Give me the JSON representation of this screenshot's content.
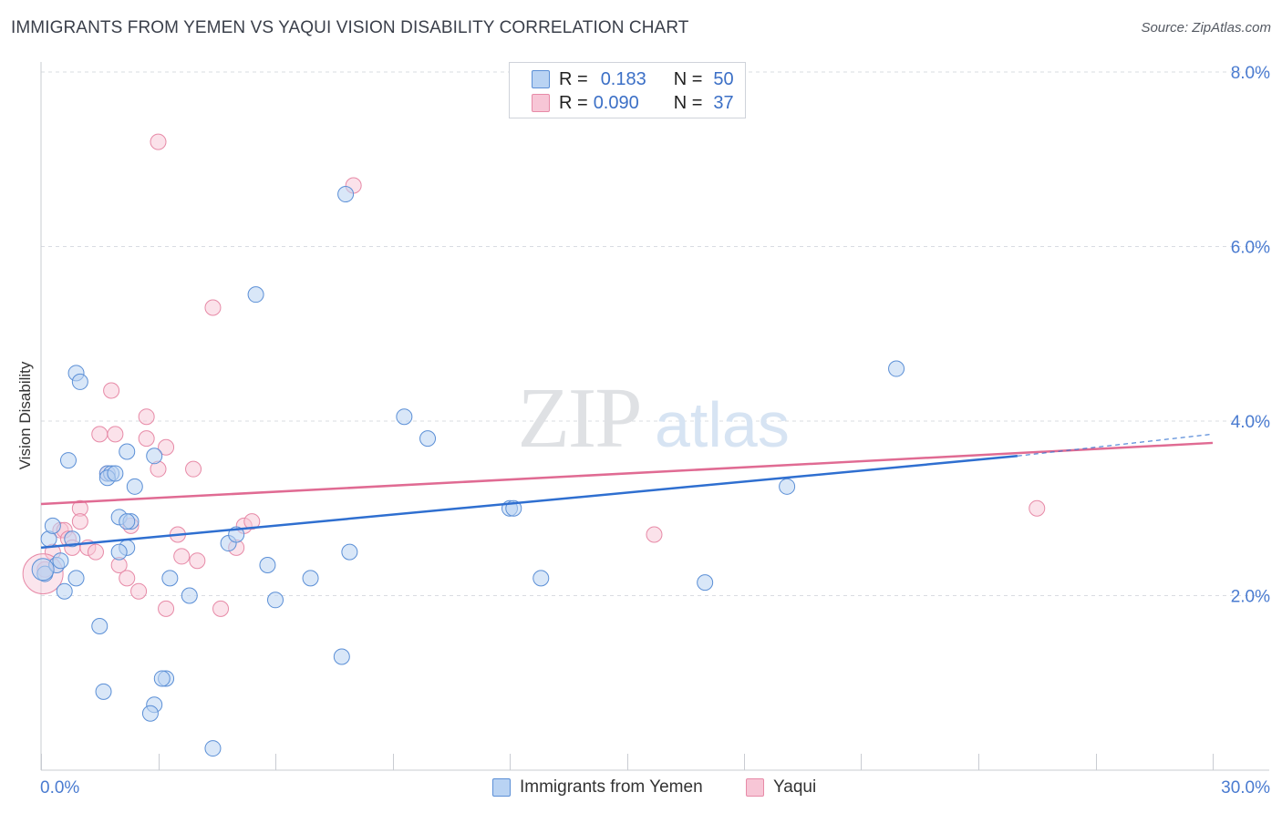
{
  "title": "IMMIGRANTS FROM YEMEN VS YAQUI VISION DISABILITY CORRELATION CHART",
  "source": "Source: ZipAtlas.com",
  "watermark": {
    "zip": "ZIP",
    "atlas": "atlas"
  },
  "legend_top": [
    {
      "r_label": "R =",
      "r_value": "0.183",
      "n_label": "N =",
      "n_value": "50"
    },
    {
      "r_label": "R =",
      "r_value": "0.090",
      "n_label": "N =",
      "n_value": "37"
    }
  ],
  "legend_bottom": [
    {
      "label": "Immigrants from Yemen"
    },
    {
      "label": "Yaqui"
    }
  ],
  "colors": {
    "blue_fill": "#b9d3f3",
    "blue_stroke": "#5b8fd6",
    "blue_line": "#2f6fd0",
    "pink_fill": "#f7c6d6",
    "pink_stroke": "#e78aa7",
    "pink_line": "#e06b93",
    "tick_label": "#4a7bd0",
    "grid": "#d9dce2"
  },
  "chart_data": {
    "type": "scatter",
    "title": "IMMIGRANTS FROM YEMEN VS YAQUI VISION DISABILITY CORRELATION CHART",
    "xlabel": "",
    "ylabel": "Vision Disability",
    "xlim": [
      0,
      30
    ],
    "ylim": [
      0,
      8
    ],
    "x_tick_labels": [
      {
        "value": 0,
        "label": "0.0%"
      },
      {
        "value": 30,
        "label": "30.0%"
      }
    ],
    "y_tick_labels": [
      {
        "value": 2,
        "label": "2.0%"
      },
      {
        "value": 4,
        "label": "4.0%"
      },
      {
        "value": 6,
        "label": "6.0%"
      },
      {
        "value": 8,
        "label": "8.0%"
      }
    ],
    "series": [
      {
        "name": "Immigrants from Yemen",
        "trend": {
          "x": [
            0,
            25
          ],
          "y": [
            2.55,
            3.6
          ],
          "dashed_to": [
            30,
            3.85
          ]
        },
        "points": [
          [
            0.1,
            2.25
          ],
          [
            0.2,
            2.65
          ],
          [
            0.3,
            2.8
          ],
          [
            0.4,
            2.35
          ],
          [
            0.5,
            2.4
          ],
          [
            0.6,
            2.05
          ],
          [
            0.8,
            2.65
          ],
          [
            0.7,
            3.55
          ],
          [
            0.9,
            2.2
          ],
          [
            0.9,
            4.55
          ],
          [
            1.0,
            4.45
          ],
          [
            1.7,
            3.4
          ],
          [
            1.8,
            3.4
          ],
          [
            1.6,
            0.9
          ],
          [
            1.7,
            3.35
          ],
          [
            1.9,
            3.4
          ],
          [
            1.5,
            1.65
          ],
          [
            2.0,
            2.9
          ],
          [
            2.2,
            2.55
          ],
          [
            2.2,
            3.65
          ],
          [
            2.3,
            2.85
          ],
          [
            2.0,
            2.5
          ],
          [
            2.4,
            3.25
          ],
          [
            2.2,
            2.85
          ],
          [
            2.9,
            3.6
          ],
          [
            2.9,
            0.75
          ],
          [
            2.8,
            0.65
          ],
          [
            3.2,
            1.05
          ],
          [
            3.1,
            1.05
          ],
          [
            3.3,
            2.2
          ],
          [
            3.8,
            2.0
          ],
          [
            4.4,
            0.25
          ],
          [
            4.8,
            2.6
          ],
          [
            5.0,
            2.7
          ],
          [
            5.5,
            5.45
          ],
          [
            5.8,
            2.35
          ],
          [
            6.0,
            1.95
          ],
          [
            6.9,
            2.2
          ],
          [
            7.7,
            1.3
          ],
          [
            7.8,
            6.6
          ],
          [
            7.9,
            2.5
          ],
          [
            9.3,
            4.05
          ],
          [
            9.9,
            3.8
          ],
          [
            12.0,
            3.0
          ],
          [
            12.1,
            3.0
          ],
          [
            12.8,
            2.2
          ],
          [
            17.0,
            2.15
          ],
          [
            19.1,
            3.25
          ],
          [
            21.9,
            4.6
          ],
          [
            0.05,
            2.3
          ]
        ]
      },
      {
        "name": "Yaqui",
        "trend": {
          "x": [
            0,
            30
          ],
          "y": [
            3.05,
            3.75
          ]
        },
        "points": [
          [
            0.1,
            2.3
          ],
          [
            0.3,
            2.5
          ],
          [
            0.5,
            2.75
          ],
          [
            0.6,
            2.75
          ],
          [
            0.7,
            2.65
          ],
          [
            0.8,
            2.55
          ],
          [
            1.0,
            3.0
          ],
          [
            1.0,
            2.85
          ],
          [
            1.2,
            2.55
          ],
          [
            1.4,
            2.5
          ],
          [
            1.5,
            3.85
          ],
          [
            1.7,
            3.4
          ],
          [
            1.8,
            4.35
          ],
          [
            1.9,
            3.85
          ],
          [
            2.0,
            2.35
          ],
          [
            2.2,
            2.2
          ],
          [
            2.3,
            2.8
          ],
          [
            2.5,
            2.05
          ],
          [
            2.7,
            3.8
          ],
          [
            2.7,
            4.05
          ],
          [
            3.0,
            7.2
          ],
          [
            3.0,
            3.45
          ],
          [
            3.2,
            1.85
          ],
          [
            3.2,
            3.7
          ],
          [
            3.5,
            2.7
          ],
          [
            3.6,
            2.45
          ],
          [
            3.9,
            3.45
          ],
          [
            4.0,
            2.4
          ],
          [
            4.4,
            5.3
          ],
          [
            4.6,
            1.85
          ],
          [
            5.0,
            2.55
          ],
          [
            5.2,
            2.8
          ],
          [
            5.4,
            2.85
          ],
          [
            8.0,
            6.7
          ],
          [
            15.7,
            2.7
          ],
          [
            25.5,
            3.0
          ],
          [
            0.05,
            2.25
          ]
        ]
      }
    ]
  }
}
